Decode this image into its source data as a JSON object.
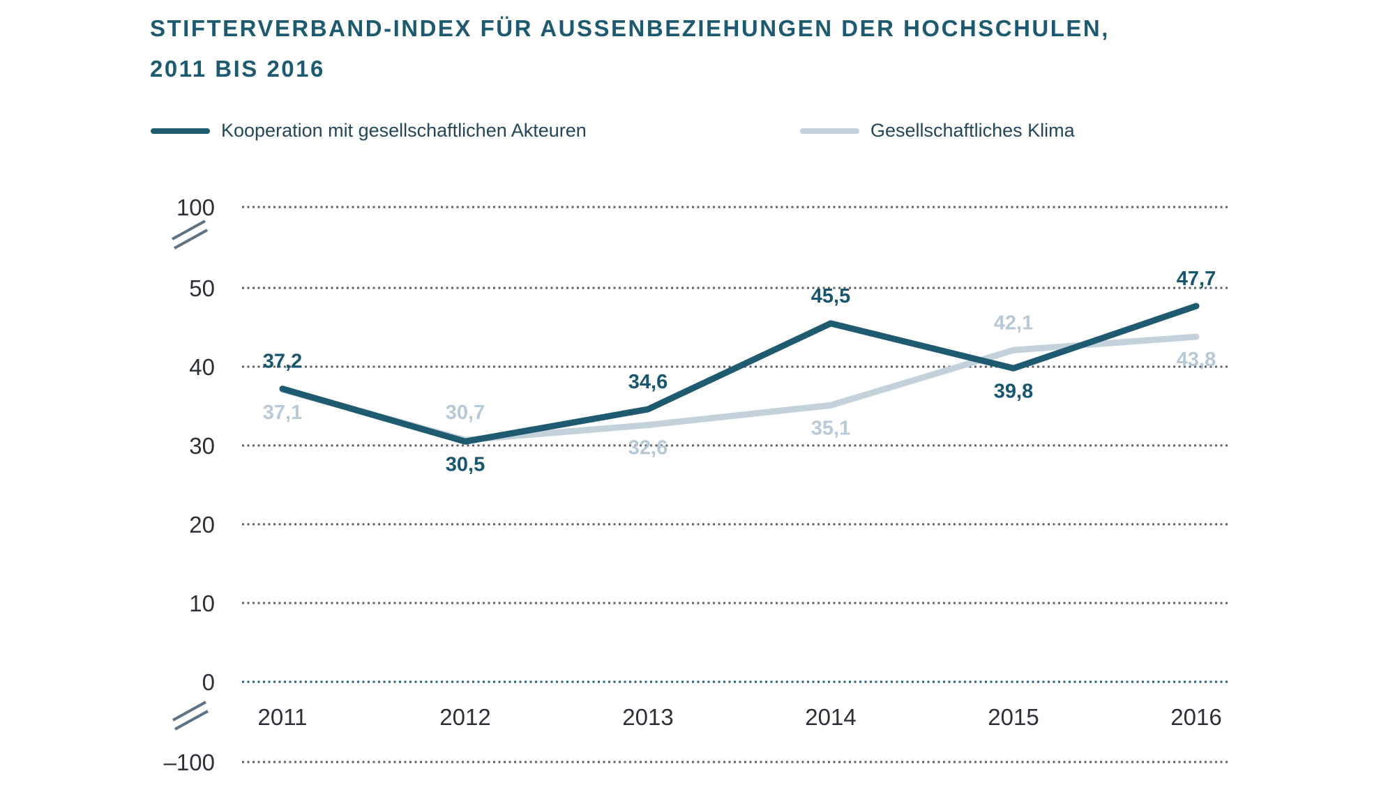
{
  "header": {
    "title_line1": "STIFTERVERBAND-INDEX FÜR AUSSENBEZIEHUNGEN DER HOCHSCHULEN,",
    "title_line2": "2011 BIS 2016"
  },
  "colors": {
    "primary": "#1E5B71",
    "primary_label": "#19566D",
    "secondary": "#C3D1DA",
    "secondary_label": "#B7C9D4",
    "grid": "#5E5F66",
    "zero_line": "#1E5F7D",
    "axis_text": "#2B2F36",
    "break_mark": "#5C7386"
  },
  "chart_data": {
    "type": "line",
    "title": "Stifterverband-Index für Aussenbeziehungen der Hochschulen, 2011 bis 2016",
    "x": [
      2011,
      2012,
      2013,
      2014,
      2015,
      2016
    ],
    "series": [
      {
        "name": "Kooperation mit gesellschaftlichen Akteuren",
        "values": [
          37.2,
          30.5,
          34.6,
          45.5,
          39.8,
          47.7
        ],
        "color_key": "primary",
        "label_color_key": "primary_label",
        "label_positions": [
          "above",
          "below",
          "above",
          "above",
          "below",
          "above"
        ]
      },
      {
        "name": "Gesellschaftliches Klima",
        "values": [
          37.1,
          30.7,
          32.6,
          35.1,
          42.1,
          43.8
        ],
        "color_key": "secondary",
        "label_color_key": "secondary_label",
        "label_positions": [
          "below",
          "above",
          "below",
          "below",
          "above",
          "below"
        ]
      }
    ],
    "y_ticks": [
      100,
      50,
      40,
      30,
      20,
      10,
      0,
      -100
    ],
    "axis_breaks": [
      [
        50,
        100
      ],
      [
        -100,
        0
      ]
    ],
    "ylim": [
      -100,
      100
    ],
    "grid": "dotted-horizontal",
    "legend_position": "top",
    "decimal_separator": ","
  }
}
